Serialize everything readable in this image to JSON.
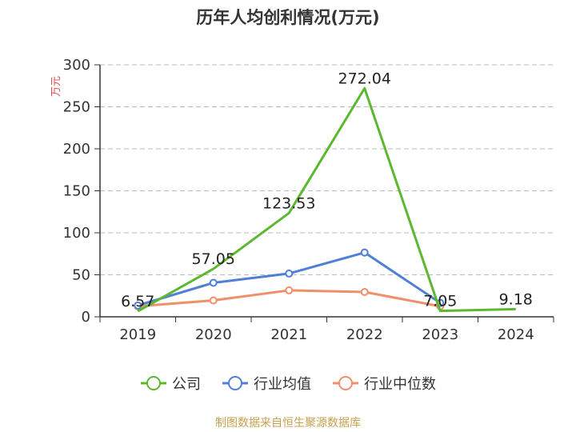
{
  "chart_data": {
    "type": "line",
    "title": "历年人均创利情况(万元)",
    "ylabel": "万元",
    "xlabel": "",
    "categories": [
      "2019",
      "2020",
      "2021",
      "2022",
      "2023",
      "2024"
    ],
    "y_ticks": [
      "0",
      "50",
      "100",
      "150",
      "200",
      "250",
      "300"
    ],
    "ylim": [
      0,
      300
    ],
    "grid": true,
    "legend_position": "bottom",
    "series": [
      {
        "name": "公司",
        "color": "#5cb82f",
        "values": [
          6.57,
          57.05,
          123.53,
          272.04,
          7.05,
          9.18
        ],
        "labels": [
          "6.57",
          "57.05",
          "123.53",
          "272.04",
          "7.05",
          "9.18"
        ]
      },
      {
        "name": "行业均值",
        "color": "#4f7fd6",
        "values": [
          13.5,
          40.5,
          51.5,
          76.5,
          16.5,
          null
        ],
        "labels": []
      },
      {
        "name": "行业中位数",
        "color": "#f0906a",
        "values": [
          12.5,
          19.5,
          31.5,
          29.5,
          12.5,
          null
        ],
        "labels": []
      }
    ],
    "source": "制图数据来自恒生聚源数据库"
  }
}
